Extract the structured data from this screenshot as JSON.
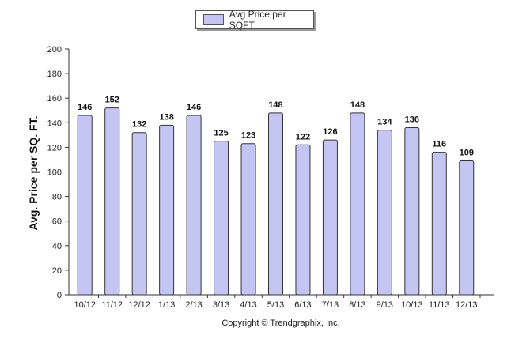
{
  "colors": {
    "bar_fill": "#c5c5f3",
    "bar_stroke": "#333333",
    "axis": "#333333"
  },
  "chart_data": {
    "type": "bar",
    "categories": [
      "10/12",
      "11/12",
      "12/12",
      "1/13",
      "2/13",
      "3/13",
      "4/13",
      "5/13",
      "6/13",
      "7/13",
      "8/13",
      "9/13",
      "10/13",
      "11/13",
      "12/13"
    ],
    "series": [
      {
        "name": "Avg Price per SQFT",
        "values": [
          146,
          152,
          132,
          138,
          146,
          125,
          123,
          148,
          122,
          126,
          148,
          134,
          136,
          116,
          109
        ]
      }
    ],
    "ylabel": "Avg. Price per SQ. FT.",
    "xlabel": "",
    "ylim": [
      0,
      200
    ],
    "yticks": [
      0,
      20,
      40,
      60,
      80,
      100,
      120,
      140,
      160,
      180,
      200
    ],
    "legend_position": "top-center",
    "grid": false,
    "data_labels": true,
    "footer": "Copyright © Trendgraphix, Inc."
  }
}
